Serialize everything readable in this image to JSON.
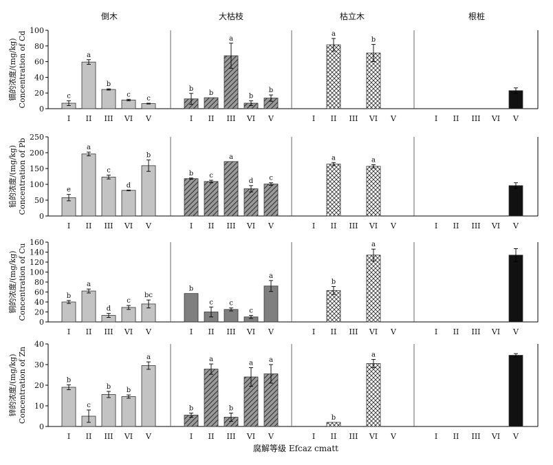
{
  "chart_data": {
    "type": "bar",
    "x_title": "腐解等级 Efcaz cmatt",
    "groups": [
      "倒木",
      "大枯枝",
      "枯立木",
      "根桩"
    ],
    "categories": [
      "I",
      "II",
      "III",
      "VI",
      "V"
    ],
    "panels": [
      {
        "ylabel_cn": "镉的浓度/(mg/kg)",
        "ylabel_en": "Concentration of Cd",
        "ylim": [
          0,
          100
        ],
        "yticks": [
          0,
          20,
          40,
          60,
          80,
          100
        ],
        "data": [
          {
            "values": [
              7,
              59.5,
              24.5,
              11,
              6.5
            ],
            "errors": [
              3,
              3,
              0.8,
              1,
              0.5
            ],
            "sig": [
              "c",
              "a",
              "b",
              "c",
              "c"
            ]
          },
          {
            "values": [
              12.5,
              14,
              67.5,
              7,
              13.5
            ],
            "errors": [
              7,
              0,
              16,
              3,
              4
            ],
            "sig": [
              "b",
              "b",
              "a",
              "b",
              "b"
            ]
          },
          {
            "values": [
              null,
              81.5,
              null,
              71,
              null
            ],
            "errors": [
              null,
              8,
              null,
              11,
              null
            ],
            "sig": [
              "",
              "a",
              "",
              "b",
              ""
            ]
          },
          {
            "values": [
              null,
              null,
              null,
              null,
              23
            ],
            "errors": [
              null,
              null,
              null,
              null,
              3.5
            ],
            "sig": [
              "",
              "",
              "",
              "",
              ""
            ]
          }
        ]
      },
      {
        "ylabel_cn": "铅的浓度/(mg/kg)",
        "ylabel_en": "Concentration of Pb",
        "ylim": [
          0,
          250
        ],
        "yticks": [
          0,
          50,
          100,
          150,
          200,
          250
        ],
        "data": [
          {
            "values": [
              58,
              196,
              123,
              81,
              159
            ],
            "errors": [
              10,
              6,
              6,
              1,
              18
            ],
            "sig": [
              "e",
              "a",
              "c",
              "d",
              "b"
            ]
          },
          {
            "values": [
              118,
              109,
              172,
              86,
              101
            ],
            "errors": [
              2,
              4,
              0,
              10,
              4
            ],
            "sig": [
              "b",
              "c",
              "a",
              "d",
              "c"
            ]
          },
          {
            "values": [
              null,
              164,
              null,
              157,
              null
            ],
            "errors": [
              null,
              5,
              null,
              5,
              null
            ],
            "sig": [
              "",
              "a",
              "",
              "a",
              ""
            ]
          },
          {
            "values": [
              null,
              null,
              null,
              null,
              96
            ],
            "errors": [
              null,
              null,
              null,
              null,
              9
            ],
            "sig": [
              "",
              "",
              "",
              "",
              ""
            ]
          }
        ]
      },
      {
        "ylabel_cn": "铜的浓度/(mg/kg)",
        "ylabel_en": "Concentration of Cu",
        "ylim": [
          0,
          160
        ],
        "yticks": [
          0,
          20,
          40,
          60,
          80,
          100,
          120,
          140,
          160
        ],
        "data": [
          {
            "values": [
              40,
              62,
              13,
              29,
              36
            ],
            "errors": [
              3,
              4,
              4,
              4,
              8
            ],
            "sig": [
              "b",
              "a",
              "d",
              "c",
              "bc"
            ]
          },
          {
            "values": [
              57,
              20,
              25,
              10,
              72
            ],
            "errors": [
              0,
              10,
              3,
              3,
              11
            ],
            "sig": [
              "b",
              "c",
              "c",
              "c",
              "a"
            ]
          },
          {
            "values": [
              null,
              63,
              null,
              134,
              null
            ],
            "errors": [
              null,
              8,
              null,
              12,
              null
            ],
            "sig": [
              "",
              "b",
              "",
              "a",
              ""
            ]
          },
          {
            "values": [
              null,
              null,
              null,
              null,
              134
            ],
            "errors": [
              null,
              null,
              null,
              null,
              13
            ],
            "sig": [
              "",
              "",
              "",
              "",
              ""
            ]
          }
        ]
      },
      {
        "ylabel_cn": "锌的浓度/(mg/kg)",
        "ylabel_en": "Concentration of Zn",
        "ylim": [
          0,
          40
        ],
        "yticks": [
          0,
          10,
          20,
          30,
          40
        ],
        "data": [
          {
            "values": [
              19,
              5,
              15.5,
              14.5,
              29.5
            ],
            "errors": [
              1.2,
              3,
              1.5,
              0.8,
              1.8
            ],
            "sig": [
              "b",
              "c",
              "b",
              "b",
              "a"
            ]
          },
          {
            "values": [
              5.5,
              27.8,
              4.5,
              24,
              25.5
            ],
            "errors": [
              1,
              2.5,
              2,
              4.5,
              4.5
            ],
            "sig": [
              "b",
              "a",
              "b",
              "a",
              "a"
            ]
          },
          {
            "values": [
              null,
              2,
              null,
              30.5,
              null
            ],
            "errors": [
              null,
              0,
              null,
              2,
              null
            ],
            "sig": [
              "",
              "b",
              "",
              "a",
              ""
            ]
          },
          {
            "values": [
              null,
              null,
              null,
              null,
              34.5
            ],
            "errors": [
              null,
              null,
              null,
              null,
              0.8
            ],
            "sig": [
              "",
              "",
              "",
              "",
              ""
            ]
          }
        ]
      }
    ]
  }
}
